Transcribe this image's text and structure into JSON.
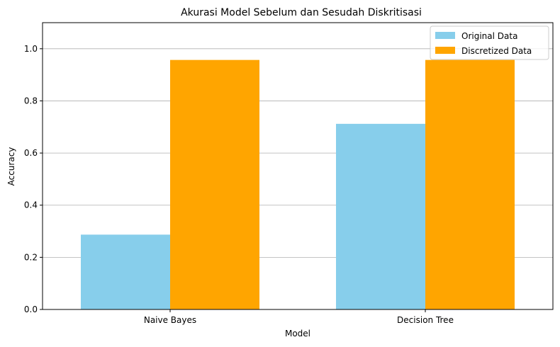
{
  "chart_data": {
    "type": "bar",
    "title": "Akurasi Model Sebelum dan Sesudah Diskritisasi",
    "xlabel": "Model",
    "ylabel": "Accuracy",
    "categories": [
      "Naive Bayes",
      "Decision Tree"
    ],
    "series": [
      {
        "name": "Original Data",
        "values": [
          0.287,
          0.712
        ],
        "color": "#87ceeb"
      },
      {
        "name": "Discretized Data",
        "values": [
          0.957,
          0.957
        ],
        "color": "#ffa500"
      }
    ],
    "ylim": [
      0,
      1.1
    ],
    "yticks": [
      0.0,
      0.2,
      0.4,
      0.6,
      0.8,
      1.0
    ],
    "ytick_labels": [
      "0.0",
      "0.2",
      "0.4",
      "0.6",
      "0.8",
      "1.0"
    ],
    "grid": "y",
    "legend_position": "top-right"
  }
}
